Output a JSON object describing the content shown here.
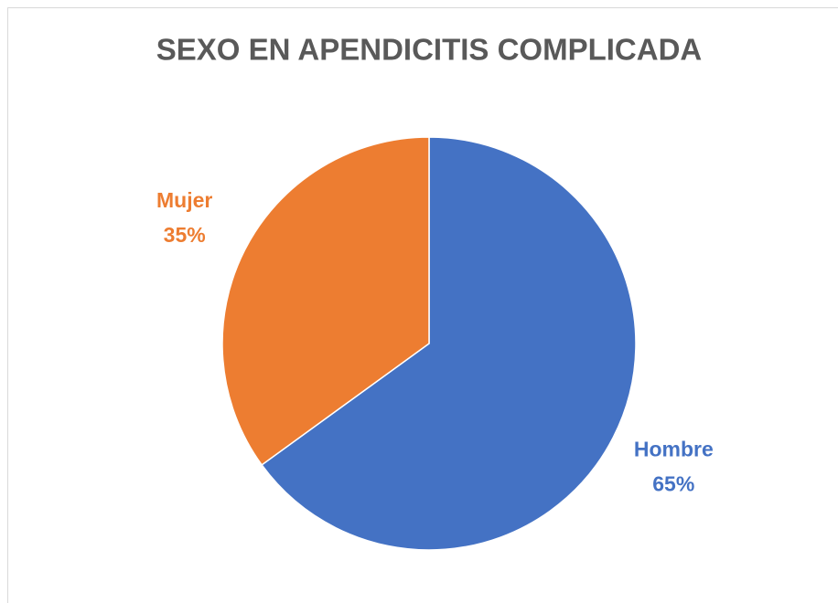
{
  "chart_data": {
    "type": "pie",
    "title": "SEXO EN APENDICITIS COMPLICADA",
    "categories": [
      "Hombre",
      "Mujer"
    ],
    "values": [
      65,
      35
    ],
    "value_labels": [
      "65%",
      "35%"
    ],
    "colors": [
      "#4472c4",
      "#ed7d31"
    ]
  }
}
